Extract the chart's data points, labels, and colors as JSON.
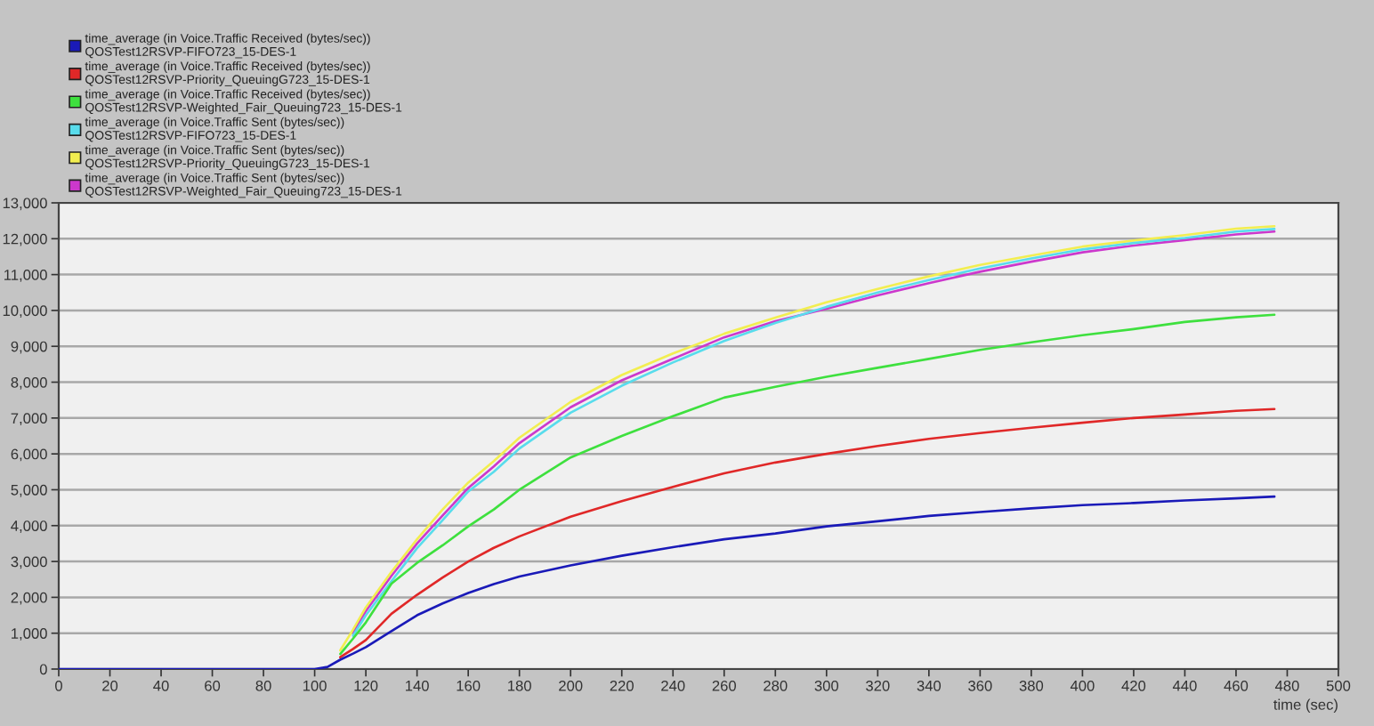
{
  "chart_data": {
    "type": "line",
    "x": [
      0,
      100,
      105,
      110,
      115,
      120,
      130,
      140,
      150,
      160,
      170,
      180,
      200,
      220,
      240,
      260,
      280,
      300,
      320,
      340,
      360,
      380,
      400,
      420,
      440,
      460,
      475
    ],
    "series": [
      {
        "name": "time_average (in Voice.Traffic Received (bytes/sec))\nQOSTest12RSVP-FIFO723_15-DES-1",
        "color": "#1a1ab8",
        "values": [
          0,
          0,
          60,
          260,
          430,
          610,
          1060,
          1500,
          1830,
          2120,
          2370,
          2580,
          2890,
          3160,
          3400,
          3620,
          3780,
          3980,
          4120,
          4270,
          4380,
          4480,
          4570,
          4630,
          4700,
          4760,
          4810
        ]
      },
      {
        "name": "time_average (in Voice.Traffic Received (bytes/sec))\nQOSTest12RSVP-Priority_QueuingG723_15-DES-1",
        "color": "#e02828",
        "values": [
          null,
          null,
          null,
          330,
          560,
          810,
          1540,
          2070,
          2550,
          3000,
          3380,
          3700,
          4250,
          4680,
          5080,
          5460,
          5760,
          6000,
          6220,
          6420,
          6580,
          6730,
          6870,
          7000,
          7100,
          7200,
          7250
        ]
      },
      {
        "name": "time_average (in Voice.Traffic Received (bytes/sec))\nQOSTest12RSVP-Weighted_Fair_Queuing723_15-DES-1",
        "color": "#3ee03e",
        "values": [
          null,
          null,
          null,
          420,
          850,
          1300,
          2380,
          2960,
          3450,
          3980,
          4450,
          5000,
          5900,
          6500,
          7050,
          7570,
          7870,
          8150,
          8400,
          8650,
          8900,
          9110,
          9310,
          9480,
          9680,
          9810,
          9880
        ]
      },
      {
        "name": "time_average (in Voice.Traffic Sent (bytes/sec))\nQOSTest12RSVP-FIFO723_15-DES-1",
        "color": "#58dcec",
        "values": [
          null,
          null,
          null,
          null,
          930,
          1500,
          2450,
          3370,
          4150,
          4950,
          5500,
          6150,
          7150,
          7900,
          8550,
          9150,
          9650,
          10100,
          10500,
          10850,
          11170,
          11450,
          11700,
          11880,
          12020,
          12200,
          12270
        ]
      },
      {
        "name": "time_average (in Voice.Traffic Sent (bytes/sec))\nQOSTest12RSVP-Priority_QueuingG723_15-DES-1",
        "color": "#f2ee50",
        "values": [
          null,
          null,
          null,
          520,
          1100,
          1720,
          2710,
          3620,
          4450,
          5200,
          5800,
          6450,
          7450,
          8200,
          8800,
          9350,
          9800,
          10230,
          10600,
          10950,
          11270,
          11530,
          11780,
          11950,
          12100,
          12280,
          12350
        ]
      },
      {
        "name": "time_average (in Voice.Traffic Sent (bytes/sec))\nQOSTest12RSVP-Weighted_Fair_Queuing723_15-DES-1",
        "color": "#cc38cc",
        "values": [
          null,
          null,
          null,
          null,
          1020,
          1620,
          2600,
          3500,
          4280,
          5050,
          5650,
          6300,
          7300,
          8050,
          8650,
          9250,
          9700,
          10050,
          10420,
          10760,
          11080,
          11360,
          11620,
          11810,
          11960,
          12120,
          12200
        ]
      }
    ],
    "xlim": [
      0,
      500
    ],
    "ylim": [
      0,
      13000
    ],
    "xticks": [
      0,
      20,
      40,
      60,
      80,
      100,
      120,
      140,
      160,
      180,
      200,
      220,
      240,
      260,
      280,
      300,
      320,
      340,
      360,
      380,
      400,
      420,
      440,
      460,
      480,
      500
    ],
    "yticks": [
      0,
      {
        "value": 1000,
        "label": "1,000"
      },
      {
        "value": 2000,
        "label": "2,000"
      },
      {
        "value": 3000,
        "label": "3,000"
      },
      {
        "value": 4000,
        "label": "4,000"
      },
      {
        "value": 5000,
        "label": "5,000"
      },
      {
        "value": 6000,
        "label": "6,000"
      },
      {
        "value": 7000,
        "label": "7,000"
      },
      {
        "value": 8000,
        "label": "8,000"
      },
      {
        "value": 9000,
        "label": "9,000"
      },
      {
        "value": 10000,
        "label": "10,000"
      },
      {
        "value": 11000,
        "label": "11,000"
      },
      {
        "value": 12000,
        "label": "12,000"
      },
      {
        "value": 13000,
        "label": "13,000"
      }
    ],
    "xlabel": "time (sec)",
    "grid": "y",
    "legend": "top left"
  }
}
